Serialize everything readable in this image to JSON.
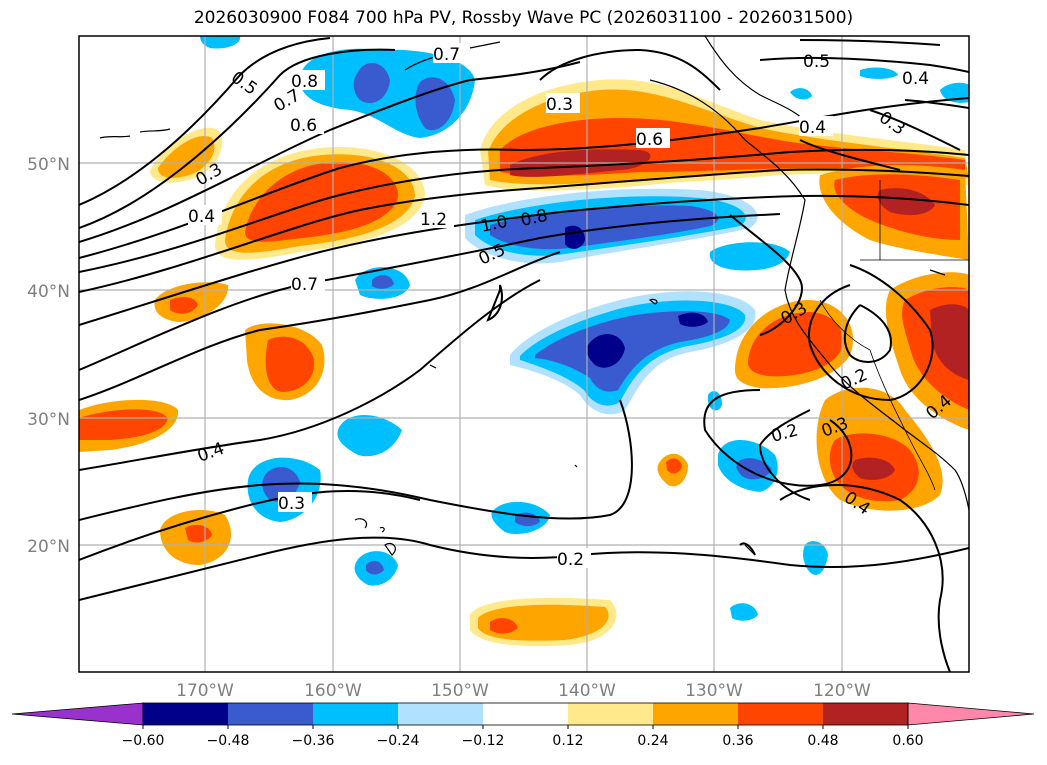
{
  "title": "2026030900 F084 700 hPa PV, Rossby Wave PC (2026031100 - 2026031500)",
  "lat_ticks": [
    "50°N",
    "40°N",
    "30°N",
    "20°N"
  ],
  "lon_ticks": [
    "170°W",
    "160°W",
    "150°W",
    "140°W",
    "130°W",
    "120°W"
  ],
  "colorbar": {
    "labels": [
      "−0.60",
      "−0.48",
      "−0.36",
      "−0.24",
      "−0.12",
      "0.12",
      "0.24",
      "0.36",
      "0.48",
      "0.60"
    ],
    "colors": [
      "#9932cc",
      "#00008b",
      "#3a5bd0",
      "#00bfff",
      "#b0e2ff",
      "#ffffff",
      "#ffe98a",
      "#ffa500",
      "#ff4500",
      "#b22222",
      "#ff88aa"
    ]
  },
  "contour_labels": [
    "0.7",
    "0.8",
    "0.5",
    "0.7",
    "0.6",
    "0.3",
    "0.4",
    "1.2",
    "1.0",
    "0.8",
    "0.5",
    "0.7",
    "0.3",
    "0.6",
    "0.5",
    "0.4",
    "0.4",
    "0.3",
    "0.4",
    "0.3",
    "0.2",
    "0.3",
    "0.2",
    "0.3",
    "0.4",
    "0.4",
    "0.2"
  ],
  "colors": {
    "axes": "#000000",
    "grid": "#b0b0b0",
    "contour": "#000000"
  }
}
